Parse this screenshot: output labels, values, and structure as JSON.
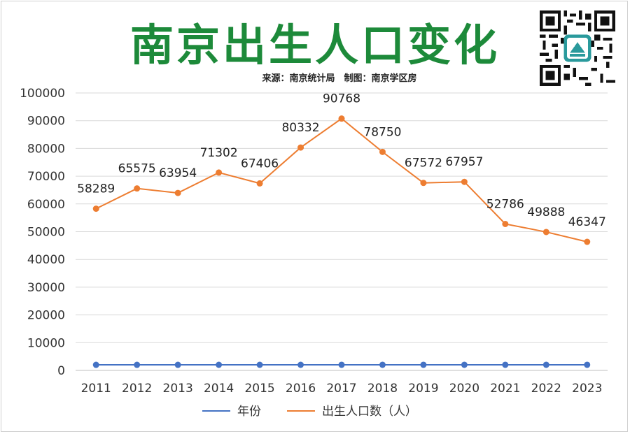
{
  "title": "南京出生人口变化",
  "source_line": "来源：南京统计局　制图：南京学区房",
  "chart_data": {
    "type": "line",
    "categories": [
      "2011",
      "2012",
      "2013",
      "2014",
      "2015",
      "2016",
      "2017",
      "2018",
      "2019",
      "2020",
      "2021",
      "2022",
      "2023"
    ],
    "series": [
      {
        "name": "年份",
        "color": "#4472c4",
        "values": [
          2011,
          2012,
          2013,
          2014,
          2015,
          2016,
          2017,
          2018,
          2019,
          2020,
          2021,
          2022,
          2023
        ]
      },
      {
        "name": "出生人口数（人）",
        "color": "#ed7d31",
        "values": [
          58289,
          65575,
          63954,
          71302,
          67406,
          80332,
          90768,
          78750,
          67572,
          67957,
          52786,
          49888,
          46347
        ],
        "labels": [
          "58289",
          "65575",
          "63954",
          "71302",
          "67406",
          "80332",
          "90768",
          "78750",
          "67572",
          "67957",
          "52786",
          "49888",
          "46347"
        ]
      }
    ],
    "ylim": [
      0,
      100000
    ],
    "yticks": [
      "0",
      "10000",
      "20000",
      "30000",
      "40000",
      "50000",
      "60000",
      "70000",
      "80000",
      "90000",
      "100000"
    ],
    "grid": true,
    "legend": "bottom"
  },
  "qr_icon": "qr-code-icon"
}
